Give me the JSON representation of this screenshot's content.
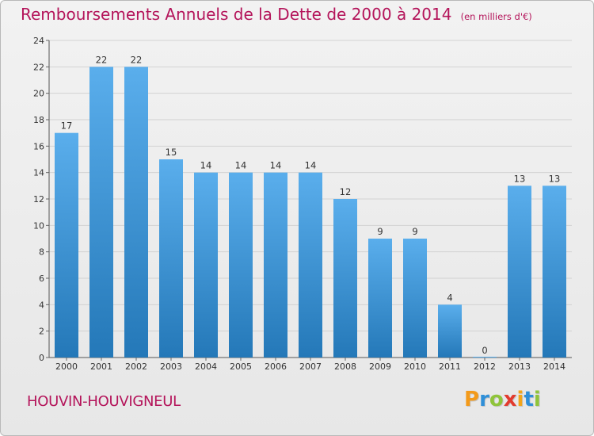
{
  "title": "Remboursements Annuels de la Dette de 2000 à 2014",
  "subtitle": "(en milliers d'€)",
  "commune": "HOUVIN-HOUVIGNEUL",
  "logo": {
    "letters": [
      "P",
      "r",
      "o",
      "x",
      "i",
      "t",
      "i"
    ],
    "colors": [
      "#f39a1a",
      "#2f8fd8",
      "#8fc43a",
      "#e23b2e",
      "#f3a51a",
      "#2f8fd8",
      "#8fc43a"
    ]
  },
  "colors": {
    "bar_top": "#5aaeec",
    "bar_bottom": "#2478b8",
    "title": "#b4145a",
    "axis_text": "#333333"
  },
  "chart_data": {
    "type": "bar",
    "categories": [
      "2000",
      "2001",
      "2002",
      "2003",
      "2004",
      "2005",
      "2006",
      "2007",
      "2008",
      "2009",
      "2010",
      "2011",
      "2012",
      "2013",
      "2014"
    ],
    "values": [
      17,
      22,
      22,
      15,
      14,
      14,
      14,
      14,
      12,
      9,
      9,
      4,
      0,
      13,
      13
    ],
    "ylim": [
      0,
      24
    ],
    "yticks": [
      0,
      2,
      4,
      6,
      8,
      10,
      12,
      14,
      16,
      18,
      20,
      22,
      24
    ],
    "grid": true,
    "data_labels": true
  }
}
